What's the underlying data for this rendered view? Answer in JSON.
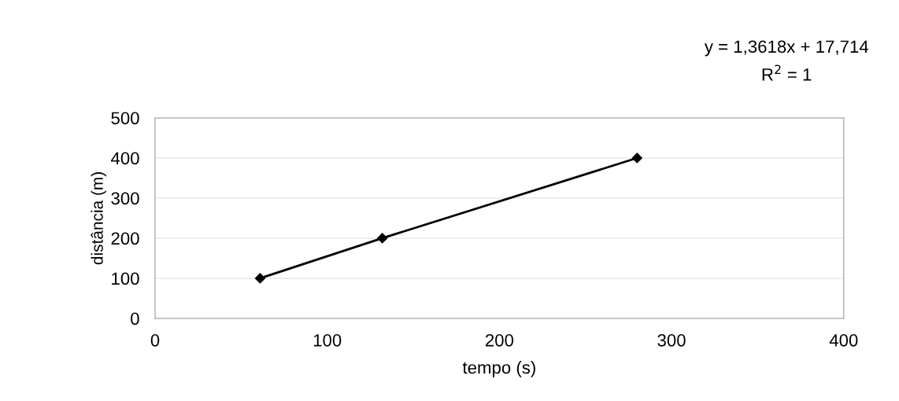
{
  "chart_data": {
    "type": "line",
    "xlabel": "tempo (s)",
    "ylabel": "distância (m)",
    "x": [
      61,
      132,
      280
    ],
    "series": [
      {
        "color": "#000000",
        "values": [
          100,
          200,
          400
        ]
      }
    ],
    "xlim": [
      0,
      400
    ],
    "xticks": [
      0,
      100,
      200,
      300,
      400
    ],
    "ylim": [
      0,
      500
    ],
    "yticks": [
      0,
      100,
      200,
      300,
      400,
      500
    ],
    "grid": "y",
    "marker": "diamond",
    "line_style": "solid",
    "annotations": [
      "y = 1,3618x + 17,714",
      "R$^{2}$ = 1"
    ]
  }
}
